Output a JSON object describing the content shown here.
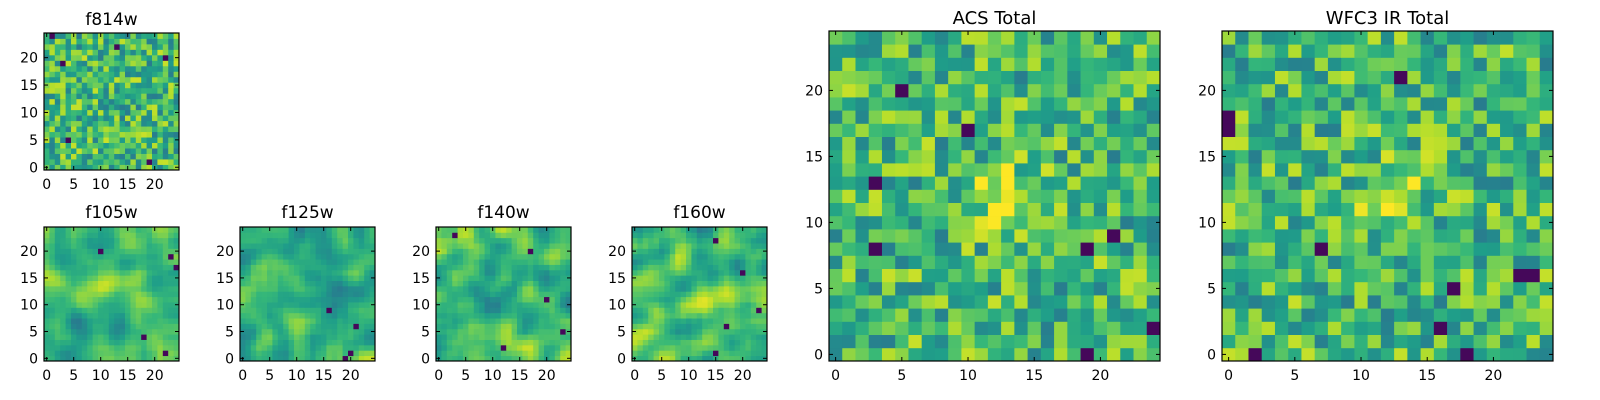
{
  "colormap": "viridis",
  "colors": {
    "viridis_low": "#440154",
    "viridis_mid": "#21918c",
    "viridis_high": "#fde725",
    "axes_frame": "#000000",
    "background": "#ffffff"
  },
  "chart_data": [
    {
      "type": "heatmap",
      "title": "f814w",
      "size": 25,
      "xticks": [
        "0",
        "5",
        "10",
        "15",
        "20"
      ],
      "yticks": [
        "0",
        "5",
        "10",
        "15",
        "20"
      ],
      "grid": false,
      "texture": "noisy",
      "blob": false,
      "dark_pixels": [
        [
          3,
          19
        ],
        [
          4,
          5
        ],
        [
          13,
          22
        ],
        [
          19,
          1
        ],
        [
          1,
          24
        ],
        [
          22,
          20
        ]
      ]
    },
    {
      "type": "heatmap",
      "title": "ACS Total",
      "size": 25,
      "xticks": [
        "0",
        "5",
        "10",
        "15",
        "20"
      ],
      "yticks": [
        "0",
        "5",
        "10",
        "15",
        "20"
      ],
      "grid": false,
      "texture": "noisy",
      "blob": true,
      "dark_pixels": [
        [
          3,
          13
        ],
        [
          3,
          8
        ],
        [
          19,
          0
        ],
        [
          19,
          8
        ],
        [
          21,
          9
        ],
        [
          24,
          2
        ],
        [
          5,
          20
        ],
        [
          10,
          17
        ]
      ]
    },
    {
      "type": "heatmap",
      "title": "f105w",
      "size": 25,
      "xticks": [
        "0",
        "5",
        "10",
        "15",
        "20"
      ],
      "yticks": [
        "0",
        "5",
        "10",
        "15",
        "20"
      ],
      "grid": false,
      "texture": "smooth",
      "blob": false,
      "dark_pixels": [
        [
          23,
          19
        ],
        [
          24,
          17
        ],
        [
          18,
          4
        ],
        [
          22,
          1
        ],
        [
          10,
          20
        ]
      ]
    },
    {
      "type": "heatmap",
      "title": "f125w",
      "size": 25,
      "xticks": [
        "0",
        "5",
        "10",
        "15",
        "20"
      ],
      "yticks": [
        "0",
        "5",
        "10",
        "15",
        "20"
      ],
      "grid": false,
      "texture": "smooth",
      "blob": false,
      "dark_pixels": [
        [
          19,
          0
        ],
        [
          20,
          1
        ],
        [
          16,
          9
        ],
        [
          21,
          6
        ]
      ]
    },
    {
      "type": "heatmap",
      "title": "f140w",
      "size": 25,
      "xticks": [
        "0",
        "5",
        "10",
        "15",
        "20"
      ],
      "yticks": [
        "0",
        "5",
        "10",
        "15",
        "20"
      ],
      "grid": false,
      "texture": "smooth",
      "blob": false,
      "dark_pixels": [
        [
          20,
          11
        ],
        [
          17,
          20
        ],
        [
          3,
          23
        ],
        [
          12,
          2
        ],
        [
          23,
          5
        ]
      ]
    },
    {
      "type": "heatmap",
      "title": "f160w",
      "size": 25,
      "xticks": [
        "0",
        "5",
        "10",
        "15",
        "20"
      ],
      "yticks": [
        "0",
        "5",
        "10",
        "15",
        "20"
      ],
      "grid": false,
      "texture": "smooth",
      "blob": true,
      "dark_pixels": [
        [
          15,
          22
        ],
        [
          20,
          16
        ],
        [
          15,
          1
        ],
        [
          23,
          9
        ],
        [
          17,
          6
        ]
      ]
    },
    {
      "type": "heatmap",
      "title": "WFC3 IR Total",
      "size": 25,
      "xticks": [
        "0",
        "5",
        "10",
        "15",
        "20"
      ],
      "yticks": [
        "0",
        "5",
        "10",
        "15",
        "20"
      ],
      "grid": false,
      "texture": "noisy",
      "blob": true,
      "dark_pixels": [
        [
          0,
          17
        ],
        [
          0,
          18
        ],
        [
          13,
          21
        ],
        [
          7,
          8
        ],
        [
          17,
          5
        ],
        [
          22,
          6
        ],
        [
          23,
          6
        ],
        [
          2,
          0
        ],
        [
          18,
          0
        ],
        [
          16,
          2
        ]
      ]
    }
  ]
}
